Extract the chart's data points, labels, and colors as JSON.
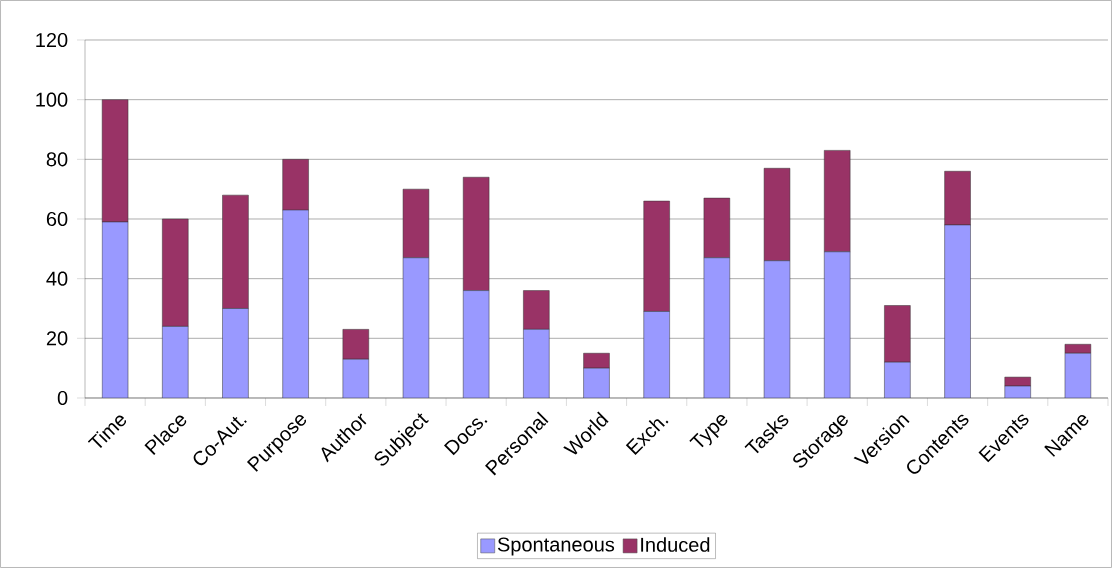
{
  "chart_data": {
    "type": "bar",
    "stacked": true,
    "categories": [
      "Time",
      "Place",
      "Co-Aut.",
      "Purpose",
      "Author",
      "Subject",
      "Docs.",
      "Personal",
      "World",
      "Exch.",
      "Type",
      "Tasks",
      "Storage",
      "Version",
      "Contents",
      "Events",
      "Name"
    ],
    "series": [
      {
        "name": "Spontaneous",
        "color": "#9999ff",
        "values": [
          59,
          24,
          30,
          63,
          13,
          47,
          36,
          23,
          10,
          29,
          47,
          46,
          49,
          12,
          58,
          4,
          15
        ]
      },
      {
        "name": "Induced",
        "color": "#993366",
        "values": [
          41,
          36,
          38,
          17,
          10,
          23,
          38,
          13,
          5,
          37,
          20,
          31,
          34,
          19,
          18,
          3,
          3
        ]
      }
    ],
    "ylim": [
      0,
      120
    ],
    "yticks": [
      0,
      20,
      40,
      60,
      80,
      100,
      120
    ],
    "grid": "y",
    "legend": "bottom"
  }
}
